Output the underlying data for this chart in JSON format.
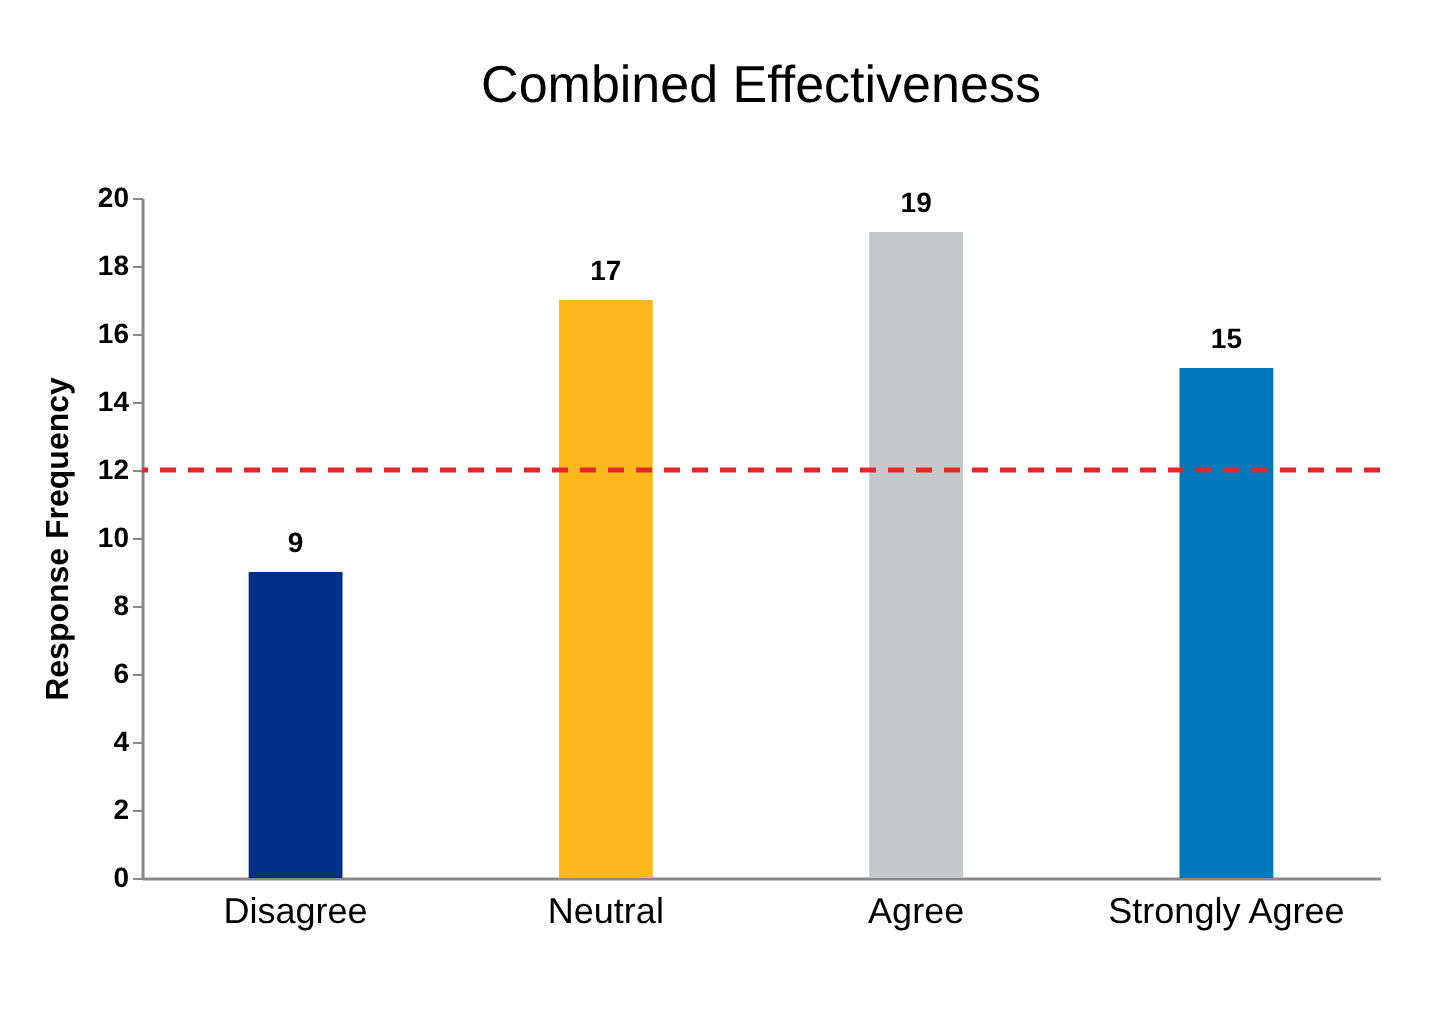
{
  "chart_data": {
    "type": "bar",
    "title": "Combined Effectiveness",
    "ylabel": "Response Frequency",
    "categories": [
      "Disagree",
      "Neutral",
      "Agree",
      "Strongly Agree"
    ],
    "values": [
      9,
      17,
      19,
      15
    ],
    "colors": [
      "#002f87",
      "#fdb81e",
      "#c5c8cb",
      "#0078bd"
    ],
    "ylim": [
      0,
      20
    ],
    "yticks": [
      0,
      2,
      4,
      6,
      8,
      10,
      12,
      14,
      16,
      18,
      20
    ],
    "data_labels": true,
    "grid": false,
    "legend": false,
    "ref_lines": [
      {
        "axis": "y",
        "value": 12,
        "color": "#e8262a",
        "line_style": "dashed"
      }
    ]
  }
}
